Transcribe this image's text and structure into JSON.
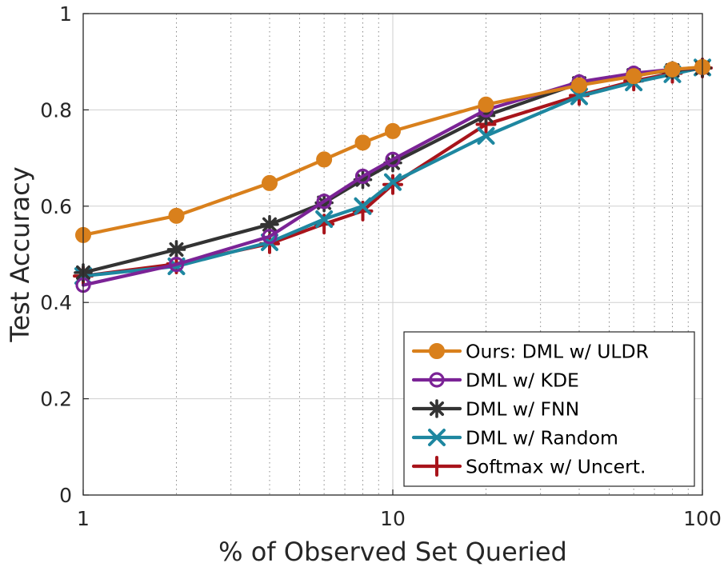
{
  "chart_data": {
    "type": "line",
    "title": "",
    "xlabel": "% of Observed Set Queried",
    "ylabel": "Test Accuracy",
    "xscale": "log",
    "xlim": [
      1,
      100
    ],
    "ylim": [
      0,
      1
    ],
    "x_ticks": [
      1,
      10,
      100
    ],
    "x_tick_labels": [
      "1",
      "10",
      "100"
    ],
    "y_ticks": [
      0,
      0.2,
      0.4,
      0.6,
      0.8,
      1
    ],
    "y_tick_labels": [
      "0",
      "0.2",
      "0.4",
      "0.6",
      "0.8",
      "1"
    ],
    "grid": true,
    "legend_position": "bottom-right",
    "x": [
      1,
      2,
      4,
      6,
      8,
      10,
      20,
      40,
      60,
      80,
      100
    ],
    "series": [
      {
        "name": "Ours: DML w/ ULDR",
        "color": "#d9801c",
        "marker": "filled-circle",
        "values": [
          0.54,
          0.58,
          0.648,
          0.697,
          0.732,
          0.756,
          0.811,
          0.851,
          0.87,
          0.884,
          0.889
        ]
      },
      {
        "name": "DML w/ KDE",
        "color": "#7b2396",
        "marker": "open-circle",
        "values": [
          0.436,
          0.479,
          0.537,
          0.61,
          0.662,
          0.697,
          0.8,
          0.858,
          0.876,
          0.884,
          0.888
        ]
      },
      {
        "name": "DML w/ FNN",
        "color": "#333333",
        "marker": "asterisk",
        "values": [
          0.462,
          0.51,
          0.562,
          0.607,
          0.655,
          0.69,
          0.788,
          0.855,
          0.872,
          0.882,
          0.887
        ]
      },
      {
        "name": "DML w/ Random",
        "color": "#1e87a0",
        "marker": "x",
        "values": [
          0.455,
          0.475,
          0.525,
          0.573,
          0.6,
          0.65,
          0.746,
          0.828,
          0.857,
          0.874,
          0.888
        ]
      },
      {
        "name": "Softmax w/ Uncert.",
        "color": "#a8141b",
        "marker": "plus",
        "values": [
          0.455,
          0.48,
          0.522,
          0.563,
          0.59,
          0.645,
          0.77,
          0.83,
          0.86,
          0.876,
          0.887
        ]
      }
    ]
  }
}
